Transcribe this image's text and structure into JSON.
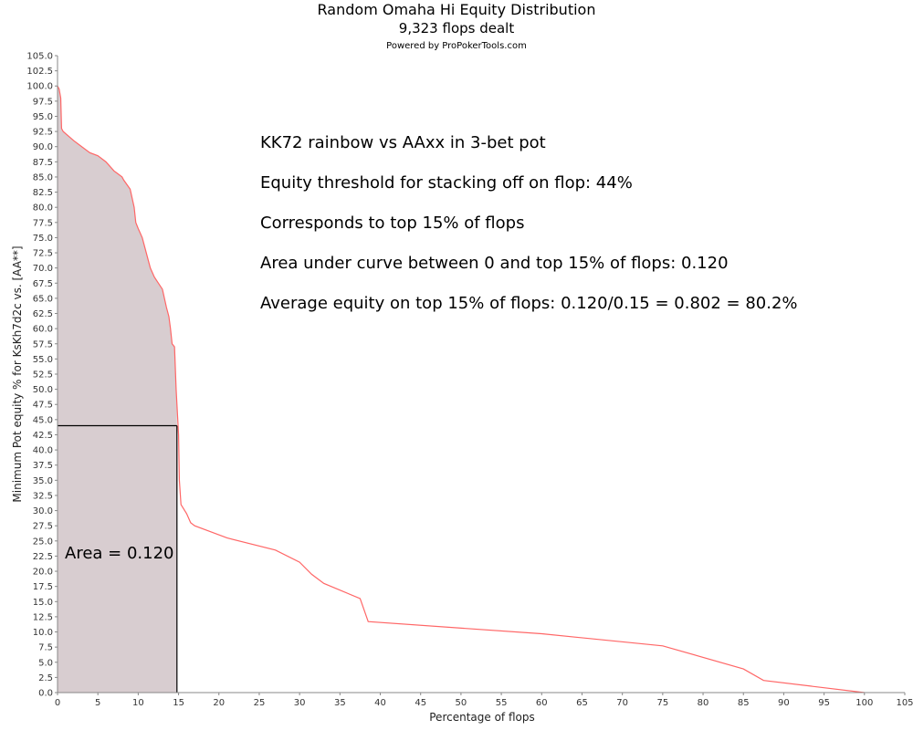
{
  "chart_data": {
    "type": "area",
    "title": "Random Omaha Hi Equity Distribution",
    "subtitle": "9,323 flops dealt",
    "credit": "Powered by ProPokerTools.com",
    "xlabel": "Percentage of flops",
    "ylabel": "Minimum Pot equity % for KsKh7d2c vs. [AA**]",
    "xlim": [
      0,
      105
    ],
    "ylim": [
      0,
      105
    ],
    "xticks": [
      0,
      5,
      10,
      15,
      20,
      25,
      30,
      35,
      40,
      45,
      50,
      55,
      60,
      65,
      70,
      75,
      80,
      85,
      90,
      95,
      100,
      105
    ],
    "yticks": [
      0,
      2.5,
      5,
      7.5,
      10,
      12.5,
      15,
      17.5,
      20,
      22.5,
      25,
      27.5,
      30,
      32.5,
      35,
      37.5,
      40,
      42.5,
      45,
      47.5,
      50,
      52.5,
      55,
      57.5,
      60,
      62.5,
      65,
      67.5,
      70,
      72.5,
      75,
      77.5,
      80,
      82.5,
      85,
      87.5,
      90,
      92.5,
      95,
      97.5,
      100,
      102.5,
      105
    ],
    "grid": false,
    "series": [
      {
        "color": "#ff6666",
        "x": [
          0,
          0.2,
          0.4,
          0.5,
          0.7,
          2,
          3,
          4,
          5,
          6,
          7,
          8,
          8.2,
          9,
          9.5,
          9.7,
          10,
          10.5,
          11,
          11.5,
          12,
          12.5,
          13,
          13.5,
          13.8,
          14,
          14.2,
          14.5,
          14.7,
          14.8,
          14.9,
          15,
          15.1,
          15.3,
          16,
          16.5,
          17,
          21,
          27,
          30,
          31.5,
          33,
          37.5,
          38.5,
          60,
          75,
          85,
          87.5,
          100
        ],
        "y": [
          100,
          99.5,
          98,
          93,
          92.5,
          91,
          90,
          89,
          88.5,
          87.5,
          86,
          85,
          84.5,
          83,
          80,
          77.5,
          76.5,
          75,
          72.5,
          70,
          68.5,
          67.5,
          66.5,
          63.5,
          62,
          60,
          57.5,
          57,
          50,
          47.5,
          45,
          42.5,
          35,
          31,
          29.5,
          28,
          27.5,
          25.5,
          23.5,
          21.5,
          19.5,
          18,
          15.5,
          11.7,
          9.7,
          7.7,
          3.9,
          2,
          0
        ]
      }
    ],
    "shaded_region": {
      "x_from": 0,
      "x_to": 14.8,
      "fill": "#d8cdd0"
    },
    "threshold": {
      "y": 44,
      "x_end": 14.8
    },
    "annotations": [
      "KK72 rainbow vs AAxx in 3-bet pot",
      "Equity threshold for stacking off on flop: 44%",
      "Corresponds to top 15% of flops",
      "Area under curve between 0 and top 15% of flops: 0.120",
      "Average equity on top 15% of flops: 0.120/0.15 = 0.802 = 80.2%"
    ],
    "area_label": "Area = 0.120"
  }
}
